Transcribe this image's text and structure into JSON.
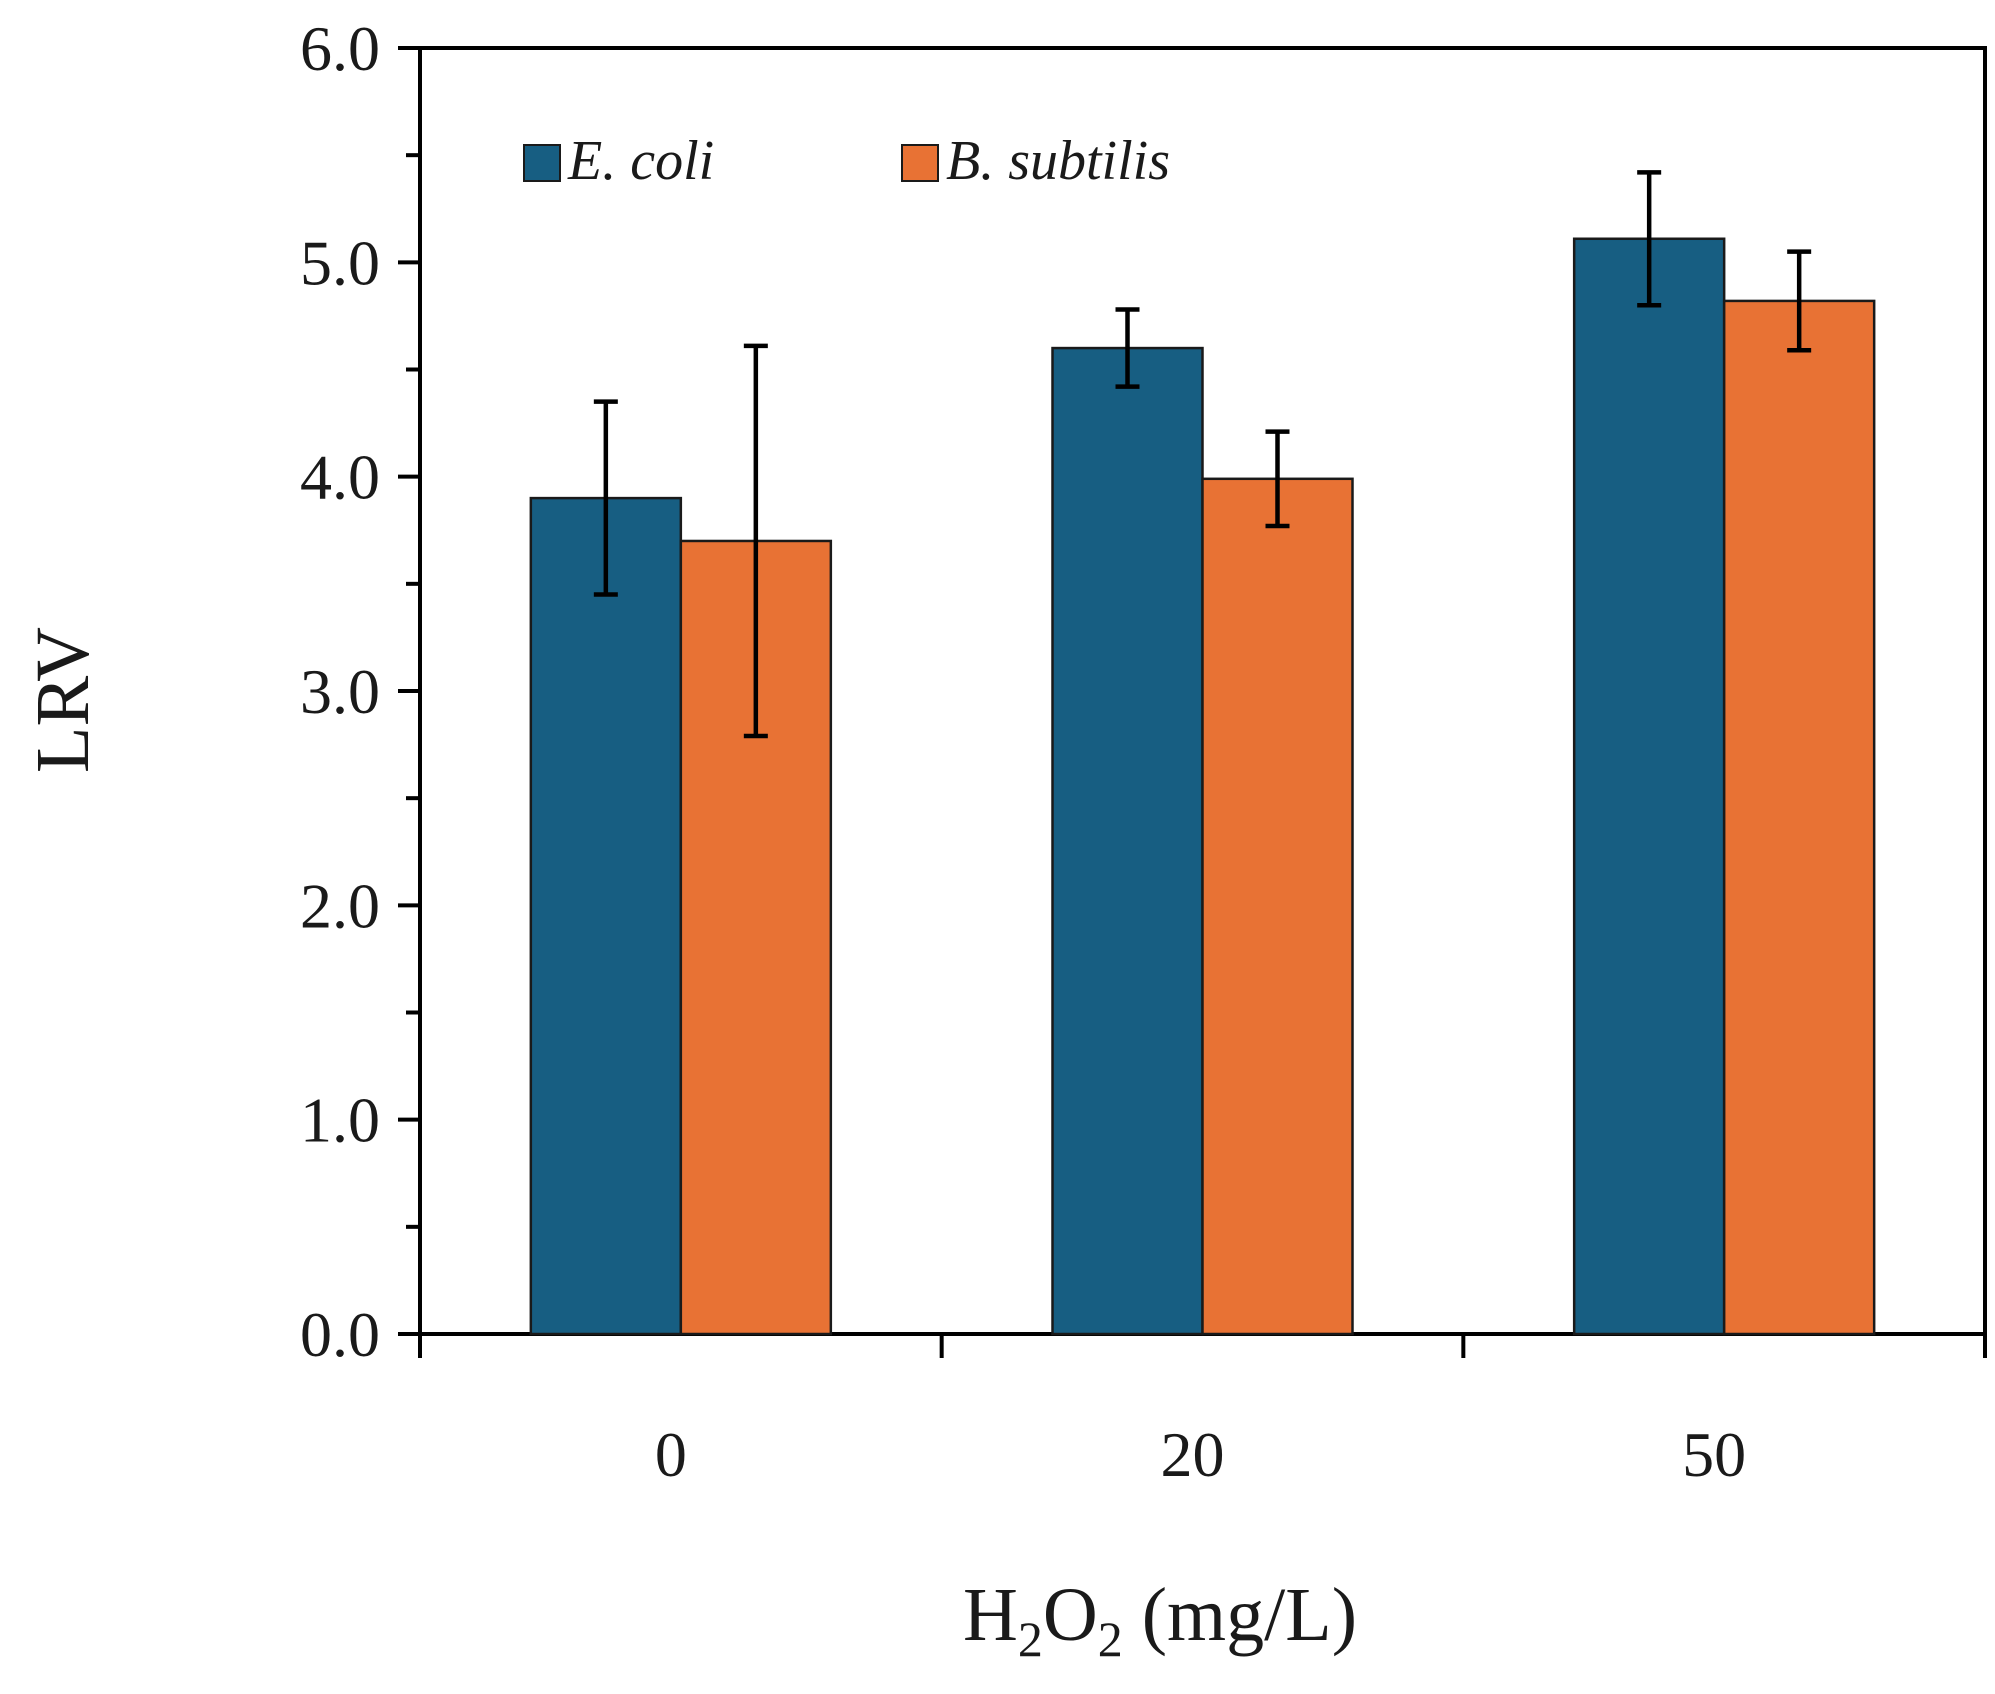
{
  "chart_data": {
    "type": "bar",
    "categories": [
      "0",
      "20",
      "50"
    ],
    "series": [
      {
        "name": "E. coli",
        "color": "#175e82",
        "values": [
          3.9,
          4.6,
          5.11
        ],
        "errors": [
          0.45,
          0.18,
          0.31
        ]
      },
      {
        "name": "B. subtilis",
        "color": "#e87234",
        "values": [
          3.7,
          3.99,
          4.82
        ],
        "errors": [
          0.91,
          0.22,
          0.23
        ]
      }
    ],
    "ylabel": "LRV",
    "xlabel": {
      "base": "H",
      "sub1": "2",
      "mid": "O",
      "sub2": "2",
      "rest": " (mg/L)"
    },
    "ylim": [
      0,
      6
    ],
    "yticks": [
      "0.0",
      "1.0",
      "2.0",
      "3.0",
      "4.0",
      "5.0",
      "6.0"
    ],
    "y_minor_step": 0.5,
    "legend_position": "top-left",
    "grid": false
  }
}
